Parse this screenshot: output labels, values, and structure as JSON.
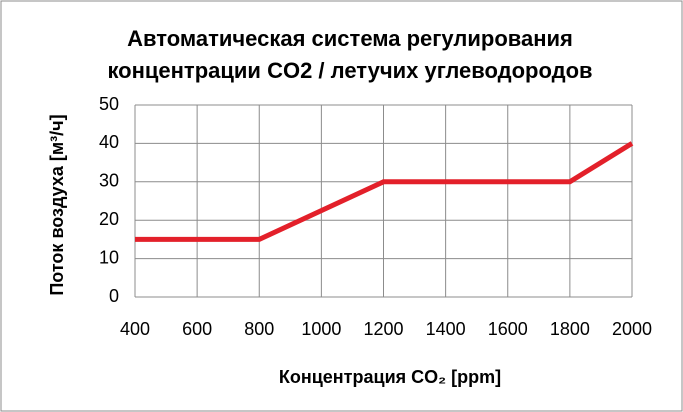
{
  "chart_data": {
    "type": "line",
    "title": [
      "Автоматическая система регулирования",
      "концентрации CO2 / летучих углеводородов"
    ],
    "x_label": "Концентрация  CO₂ [ppm]",
    "y_label": "Поток воздуха [м³/ч]",
    "x": [
      400,
      800,
      1200,
      1800,
      2000
    ],
    "series": [
      {
        "name": "Поток воздуха",
        "color": "#e3202a",
        "values": [
          15,
          15,
          30,
          30,
          40
        ]
      }
    ],
    "xlim": [
      400,
      2000
    ],
    "xticks": [
      400,
      600,
      800,
      1000,
      1200,
      1400,
      1600,
      1800,
      2000
    ],
    "ylim": [
      0,
      50
    ],
    "yticks": [
      0,
      10,
      20,
      30,
      40,
      50
    ],
    "grid": true
  }
}
